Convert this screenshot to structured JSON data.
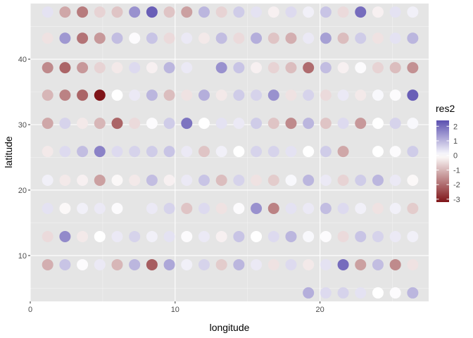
{
  "chart_data": {
    "type": "scatter",
    "title": "",
    "xlabel": "longitude",
    "ylabel": "latitude",
    "xlim": [
      0,
      27.5
    ],
    "ylim": [
      3,
      48.5
    ],
    "x_ticks": [
      0,
      10,
      20
    ],
    "y_ticks": [
      10,
      20,
      30,
      40
    ],
    "x_tick_labels": [
      "0",
      "10",
      "20"
    ],
    "y_tick_labels": [
      "10",
      "20",
      "30",
      "40"
    ],
    "grid": true,
    "panel_background": "#e5e5e5",
    "legend": {
      "title": "res2",
      "position": "right",
      "limits": [
        -3.2,
        2.4
      ],
      "breaks": [
        2,
        1,
        0,
        -1,
        -2,
        -3
      ],
      "break_labels": [
        "2",
        "1",
        "0",
        "-1",
        "-2",
        "-3"
      ],
      "low_color": "#7f1418",
      "mid_color": "#ffffff",
      "high_color": "#5b4fb0"
    },
    "points": [
      [
        1.2,
        47.2,
        0.4
      ],
      [
        2.4,
        47.2,
        -1.2
      ],
      [
        3.6,
        47.2,
        -1.8
      ],
      [
        4.8,
        47.2,
        -0.6
      ],
      [
        6,
        47.2,
        -0.8
      ],
      [
        7.2,
        47.2,
        1.5
      ],
      [
        8.4,
        47.2,
        2.2
      ],
      [
        9.6,
        47.2,
        -0.8
      ],
      [
        10.8,
        47.2,
        -1.3
      ],
      [
        12,
        47.2,
        1.0
      ],
      [
        13.2,
        47.2,
        -0.6
      ],
      [
        14.4,
        47.2,
        0.7
      ],
      [
        15.6,
        47.2,
        0.4
      ],
      [
        16.8,
        47.2,
        -0.2
      ],
      [
        18,
        47.2,
        0.5
      ],
      [
        19.2,
        47.2,
        0.2
      ],
      [
        20.4,
        47.2,
        0.8
      ],
      [
        21.6,
        47.2,
        -0.5
      ],
      [
        22.8,
        47.2,
        2.0
      ],
      [
        24,
        47.2,
        -0.2
      ],
      [
        25.2,
        47.2,
        0.4
      ],
      [
        26.4,
        47.2,
        0.2
      ],
      [
        1.2,
        43.2,
        -0.4
      ],
      [
        2.4,
        43.2,
        1.4
      ],
      [
        3.6,
        43.2,
        -1.9
      ],
      [
        4.8,
        43.2,
        -1.4
      ],
      [
        6,
        43.2,
        0.9
      ],
      [
        7.2,
        43.2,
        0.05
      ],
      [
        8.4,
        43.2,
        0.8
      ],
      [
        9.6,
        43.2,
        -0.5
      ],
      [
        10.8,
        43.2,
        0.3
      ],
      [
        12,
        43.2,
        -0.3
      ],
      [
        13.2,
        43.2,
        0.9
      ],
      [
        14.4,
        43.2,
        -0.5
      ],
      [
        15.6,
        43.2,
        1.1
      ],
      [
        16.8,
        43.2,
        -0.8
      ],
      [
        18,
        43.2,
        -1.1
      ],
      [
        19.2,
        43.2,
        0.3
      ],
      [
        20.4,
        43.2,
        1.3
      ],
      [
        21.6,
        43.2,
        -0.9
      ],
      [
        22.8,
        43.2,
        0.7
      ],
      [
        24,
        43.2,
        -0.4
      ],
      [
        25.2,
        43.2,
        0.4
      ],
      [
        26.4,
        43.2,
        1.0
      ],
      [
        1.2,
        38.7,
        -1.6
      ],
      [
        2.4,
        38.7,
        -2.1
      ],
      [
        3.6,
        38.7,
        -1.4
      ],
      [
        4.8,
        38.7,
        -0.6
      ],
      [
        6,
        38.7,
        -0.3
      ],
      [
        7.2,
        38.7,
        0.5
      ],
      [
        8.4,
        38.7,
        -0.2
      ],
      [
        9.6,
        38.7,
        1.0
      ],
      [
        10.8,
        38.7,
        0.3
      ],
      [
        13.2,
        38.7,
        1.5
      ],
      [
        14.4,
        38.7,
        0.8
      ],
      [
        15.6,
        38.7,
        -0.2
      ],
      [
        16.8,
        38.7,
        -0.6
      ],
      [
        18,
        38.7,
        -0.9
      ],
      [
        19.2,
        38.7,
        -2.0
      ],
      [
        20.4,
        38.7,
        0.9
      ],
      [
        21.6,
        38.7,
        -0.2
      ],
      [
        22.8,
        38.7,
        0.05
      ],
      [
        24,
        38.7,
        -0.6
      ],
      [
        25.2,
        38.7,
        -0.9
      ],
      [
        26.4,
        38.7,
        -1.5
      ],
      [
        1.2,
        34.5,
        -1.0
      ],
      [
        2.4,
        34.5,
        -1.7
      ],
      [
        3.6,
        34.5,
        -2.1
      ],
      [
        4.8,
        34.5,
        -3.2
      ],
      [
        6,
        34.5,
        0.0
      ],
      [
        7.2,
        34.5,
        0.3
      ],
      [
        8.4,
        34.5,
        1.0
      ],
      [
        9.6,
        34.5,
        -0.9
      ],
      [
        10.8,
        34.5,
        -0.4
      ],
      [
        12,
        34.5,
        1.1
      ],
      [
        13.2,
        34.5,
        -0.3
      ],
      [
        14.4,
        34.5,
        0.7
      ],
      [
        15.6,
        34.5,
        0.6
      ],
      [
        16.8,
        34.5,
        1.5
      ],
      [
        18,
        34.5,
        -0.4
      ],
      [
        19.2,
        34.5,
        0.6
      ],
      [
        20.4,
        34.5,
        -0.5
      ],
      [
        21.6,
        34.5,
        0.3
      ],
      [
        22.8,
        34.5,
        -0.3
      ],
      [
        24,
        34.5,
        0.1
      ],
      [
        25.2,
        34.5,
        0.05
      ],
      [
        26.4,
        34.5,
        2.2
      ],
      [
        1.2,
        30.2,
        -1.2
      ],
      [
        2.4,
        30.2,
        0.6
      ],
      [
        3.6,
        30.2,
        -0.3
      ],
      [
        4.8,
        30.2,
        -1.0
      ],
      [
        6,
        30.2,
        -2.1
      ],
      [
        7.2,
        30.2,
        -0.5
      ],
      [
        8.4,
        30.2,
        0.05
      ],
      [
        9.6,
        30.2,
        0.7
      ],
      [
        10.8,
        30.2,
        1.9
      ],
      [
        12,
        30.2,
        0.0
      ],
      [
        13.2,
        30.2,
        0.4
      ],
      [
        14.4,
        30.2,
        0.3
      ],
      [
        15.6,
        30.2,
        0.7
      ],
      [
        16.8,
        30.2,
        -0.8
      ],
      [
        18,
        30.2,
        -1.6
      ],
      [
        19.2,
        30.2,
        1.0
      ],
      [
        20.4,
        30.2,
        -0.8
      ],
      [
        21.6,
        30.2,
        0.5
      ],
      [
        22.8,
        30.2,
        -1.4
      ],
      [
        24,
        30.2,
        0.0
      ],
      [
        25.2,
        30.2,
        0.6
      ],
      [
        26.4,
        30.2,
        0.1
      ],
      [
        1.2,
        25.9,
        -0.3
      ],
      [
        2.4,
        25.9,
        0.5
      ],
      [
        3.6,
        25.9,
        0.9
      ],
      [
        4.8,
        25.9,
        1.7
      ],
      [
        6,
        25.9,
        0.5
      ],
      [
        7.2,
        25.9,
        0.6
      ],
      [
        8.4,
        25.9,
        0.7
      ],
      [
        9.6,
        25.9,
        0.8
      ],
      [
        10.8,
        25.9,
        0.3
      ],
      [
        12,
        25.9,
        -0.8
      ],
      [
        13.2,
        25.9,
        0.2
      ],
      [
        14.4,
        25.9,
        0.0
      ],
      [
        15.6,
        25.9,
        0.6
      ],
      [
        16.8,
        25.9,
        0.6
      ],
      [
        18,
        25.9,
        0.4
      ],
      [
        19.2,
        25.9,
        0.0
      ],
      [
        20.4,
        25.9,
        0.7
      ],
      [
        21.6,
        25.9,
        -1.2
      ],
      [
        24,
        25.9,
        0.0
      ],
      [
        25.2,
        25.9,
        0.05
      ],
      [
        26.4,
        25.9,
        0.7
      ],
      [
        1.2,
        21.5,
        0.2
      ],
      [
        2.4,
        21.5,
        -0.3
      ],
      [
        3.6,
        21.5,
        -0.2
      ],
      [
        4.8,
        21.5,
        -1.3
      ],
      [
        6,
        21.5,
        -0.1
      ],
      [
        7.2,
        21.5,
        -0.3
      ],
      [
        8.4,
        21.5,
        0.9
      ],
      [
        9.6,
        21.5,
        -0.2
      ],
      [
        10.8,
        21.5,
        0.3
      ],
      [
        12,
        21.5,
        0.8
      ],
      [
        13.2,
        21.5,
        -0.9
      ],
      [
        14.4,
        21.5,
        0.6
      ],
      [
        15.6,
        21.5,
        -0.4
      ],
      [
        16.8,
        21.5,
        -0.7
      ],
      [
        18,
        21.5,
        0.1
      ],
      [
        19.2,
        21.5,
        1.0
      ],
      [
        20.4,
        21.5,
        0.3
      ],
      [
        21.6,
        21.5,
        -0.6
      ],
      [
        22.8,
        21.5,
        0.7
      ],
      [
        24,
        21.5,
        1.0
      ],
      [
        25.2,
        21.5,
        0.3
      ],
      [
        26.4,
        21.5,
        -0.1
      ],
      [
        1.2,
        17.2,
        0.4
      ],
      [
        2.4,
        17.2,
        -0.1
      ],
      [
        3.6,
        17.2,
        0.2
      ],
      [
        4.8,
        17.2,
        0.3
      ],
      [
        6,
        17.2,
        0.05
      ],
      [
        8.4,
        17.2,
        0.3
      ],
      [
        9.6,
        17.2,
        0.6
      ],
      [
        10.8,
        17.2,
        -0.8
      ],
      [
        12,
        17.2,
        0.5
      ],
      [
        13.2,
        17.2,
        -0.4
      ],
      [
        14.4,
        17.2,
        0.05
      ],
      [
        15.6,
        17.2,
        1.5
      ],
      [
        16.8,
        17.2,
        -1.7
      ],
      [
        18,
        17.2,
        0.4
      ],
      [
        19.2,
        17.2,
        0.3
      ],
      [
        20.4,
        17.2,
        0.9
      ],
      [
        21.6,
        17.2,
        0.5
      ],
      [
        22.8,
        17.2,
        0.2
      ],
      [
        24,
        17.2,
        -0.4
      ],
      [
        25.2,
        17.2,
        0.2
      ],
      [
        26.4,
        17.2,
        -0.7
      ],
      [
        1.2,
        12.9,
        -0.5
      ],
      [
        2.4,
        12.9,
        1.6
      ],
      [
        3.6,
        12.9,
        -0.3
      ],
      [
        4.8,
        12.9,
        0.0
      ],
      [
        6,
        12.9,
        0.3
      ],
      [
        7.2,
        12.9,
        0.6
      ],
      [
        8.4,
        12.9,
        0.2
      ],
      [
        9.6,
        12.9,
        0.4
      ],
      [
        10.8,
        12.9,
        0.05
      ],
      [
        12,
        12.9,
        0.3
      ],
      [
        13.2,
        12.9,
        -0.2
      ],
      [
        14.4,
        12.9,
        0.8
      ],
      [
        15.6,
        12.9,
        0.0
      ],
      [
        16.8,
        12.9,
        0.5
      ],
      [
        18,
        12.9,
        1.0
      ],
      [
        19.2,
        12.9,
        0.1
      ],
      [
        20.4,
        12.9,
        0.05
      ],
      [
        21.6,
        12.9,
        -0.5
      ],
      [
        22.8,
        12.9,
        0.8
      ],
      [
        24,
        12.9,
        0.6
      ],
      [
        25.2,
        12.9,
        0.3
      ],
      [
        26.4,
        12.9,
        0.2
      ],
      [
        1.2,
        8.6,
        -1.1
      ],
      [
        2.4,
        8.6,
        0.8
      ],
      [
        3.6,
        8.6,
        0.05
      ],
      [
        4.8,
        8.6,
        0.3
      ],
      [
        6,
        8.6,
        -1.0
      ],
      [
        7.2,
        8.6,
        1.0
      ],
      [
        8.4,
        8.6,
        -2.2
      ],
      [
        9.6,
        8.6,
        1.2
      ],
      [
        10.8,
        8.6,
        0.2
      ],
      [
        12,
        8.6,
        0.6
      ],
      [
        13.2,
        8.6,
        -0.7
      ],
      [
        14.4,
        8.6,
        1.0
      ],
      [
        15.6,
        8.6,
        0.3
      ],
      [
        16.8,
        8.6,
        -0.4
      ],
      [
        18,
        8.6,
        0.5
      ],
      [
        19.2,
        8.6,
        -0.3
      ],
      [
        20.4,
        8.6,
        0.4
      ],
      [
        21.6,
        8.6,
        2.0
      ],
      [
        22.8,
        8.6,
        -1.3
      ],
      [
        24,
        8.6,
        0.9
      ],
      [
        25.2,
        8.6,
        -1.6
      ],
      [
        26.4,
        8.6,
        -0.4
      ],
      [
        19.2,
        4.3,
        1.1
      ],
      [
        20.4,
        4.3,
        0.5
      ],
      [
        21.6,
        4.3,
        0.6
      ],
      [
        22.8,
        4.3,
        0.4
      ],
      [
        24,
        4.3,
        0.0
      ],
      [
        25.2,
        4.3,
        0.05
      ],
      [
        26.4,
        4.3,
        1.0
      ]
    ]
  }
}
